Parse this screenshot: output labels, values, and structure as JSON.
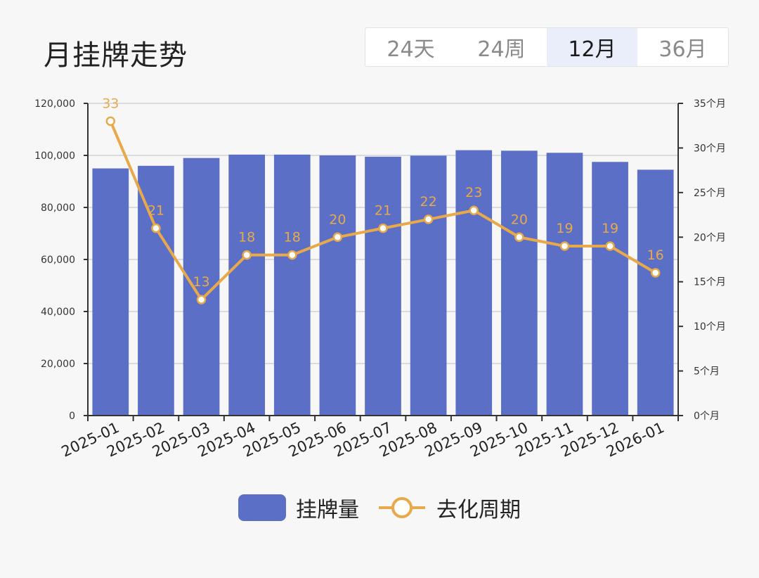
{
  "header": {
    "title": "月挂牌走势"
  },
  "tabs": [
    {
      "label": "24天",
      "active": false
    },
    {
      "label": "24周",
      "active": false
    },
    {
      "label": "12月",
      "active": true
    },
    {
      "label": "36月",
      "active": false
    }
  ],
  "colors": {
    "bar": "#5b6fc6",
    "line": "#e8a94a"
  },
  "chart_data": {
    "type": "bar",
    "categories": [
      "2025-01",
      "2025-02",
      "2025-03",
      "2025-04",
      "2025-05",
      "2025-06",
      "2025-07",
      "2025-08",
      "2025-09",
      "2025-10",
      "2025-11",
      "2025-12",
      "2026-01"
    ],
    "series": [
      {
        "name": "挂牌量",
        "type": "bar",
        "axis": "left",
        "values": [
          95000,
          96000,
          99000,
          100300,
          100300,
          100000,
          99500,
          99900,
          102000,
          101800,
          101000,
          97500,
          94500
        ]
      },
      {
        "name": "去化周期",
        "type": "line",
        "axis": "right",
        "values": [
          33,
          21,
          13,
          18,
          18,
          20,
          21,
          22,
          23,
          20,
          19,
          19,
          16
        ]
      }
    ],
    "y_left": {
      "min": 0,
      "max": 120000,
      "ticks": [
        "0",
        "20,000",
        "40,000",
        "60,000",
        "80,000",
        "100,000",
        "120,000"
      ]
    },
    "y_right": {
      "min": 0,
      "max": 35,
      "ticks": [
        "0个月",
        "5个月",
        "10个月",
        "15个月",
        "20个月",
        "25个月",
        "30个月",
        "35个月"
      ]
    },
    "grid": true,
    "legend": "bottom-center"
  }
}
